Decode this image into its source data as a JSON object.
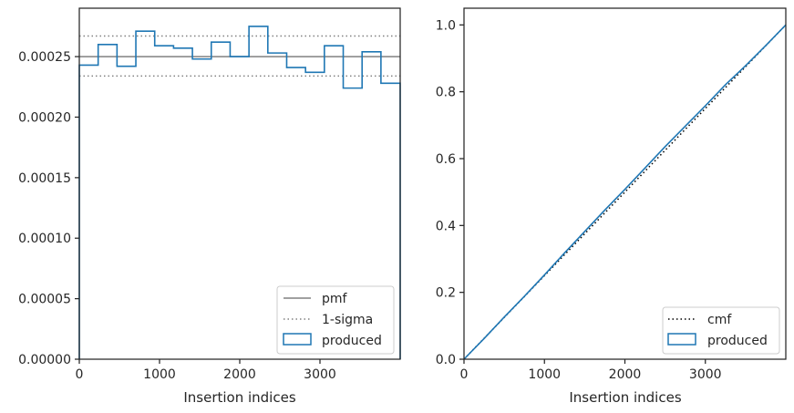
{
  "chart_data": [
    {
      "type": "step",
      "xlabel": "Insertion indices",
      "ylabel": "",
      "xlim": [
        0,
        4000
      ],
      "ylim": [
        0,
        0.00029
      ],
      "xticks": [
        0,
        1000,
        2000,
        3000
      ],
      "xtick_labels": [
        "0",
        "1000",
        "2000",
        "3000"
      ],
      "yticks": [
        0,
        5e-05,
        0.0001,
        0.00015,
        0.0002,
        0.00025
      ],
      "ytick_labels": [
        "0.00000",
        "0.00005",
        "0.00010",
        "0.00015",
        "0.00020",
        "0.00025"
      ],
      "bin_edges": [
        0,
        235,
        470,
        705,
        940,
        1175,
        1410,
        1645,
        1880,
        2115,
        2350,
        2585,
        2820,
        3055,
        3290,
        3525,
        3760,
        4000
      ],
      "series": [
        {
          "name": "pmf",
          "style": "solid",
          "color": "#808080",
          "y": 0.00025
        },
        {
          "name": "1-sigma",
          "style": "dotted",
          "color": "#808080",
          "y": [
            0.000234,
            0.000267
          ]
        },
        {
          "name": "produced",
          "style": "step",
          "color": "#1f77b4",
          "values": [
            0.000243,
            0.00026,
            0.000242,
            0.000271,
            0.000259,
            0.000257,
            0.000248,
            0.000262,
            0.00025,
            0.000275,
            0.000253,
            0.000241,
            0.000237,
            0.000259,
            0.000224,
            0.000254,
            0.000228
          ]
        }
      ],
      "legend": {
        "placement": "lower-right",
        "entries": [
          "pmf",
          "1-sigma",
          "produced"
        ]
      }
    },
    {
      "type": "line",
      "xlabel": "Insertion indices",
      "ylabel": "",
      "xlim": [
        0,
        4000
      ],
      "ylim": [
        0,
        1.05
      ],
      "xticks": [
        0,
        1000,
        2000,
        3000
      ],
      "xtick_labels": [
        "0",
        "1000",
        "2000",
        "3000"
      ],
      "yticks": [
        0,
        0.2,
        0.4,
        0.6,
        0.8,
        1.0
      ],
      "ytick_labels": [
        "0.0",
        "0.2",
        "0.4",
        "0.6",
        "0.8",
        "1.0"
      ],
      "series": [
        {
          "name": "cmf",
          "style": "dotted",
          "color": "#000000",
          "x": [
            0,
            4000
          ],
          "y": [
            0,
            1.0
          ]
        },
        {
          "name": "produced",
          "style": "line",
          "color": "#1f77b4",
          "x": [
            0,
            250,
            500,
            750,
            1000,
            1250,
            1500,
            1750,
            2000,
            2250,
            2500,
            2750,
            3000,
            3250,
            3500,
            3750,
            4000
          ],
          "y": [
            0,
            0.062,
            0.126,
            0.188,
            0.252,
            0.318,
            0.382,
            0.446,
            0.508,
            0.572,
            0.636,
            0.697,
            0.758,
            0.821,
            0.878,
            0.938,
            1.0
          ]
        }
      ],
      "legend": {
        "placement": "lower-right",
        "entries": [
          "cmf",
          "produced"
        ]
      }
    }
  ]
}
